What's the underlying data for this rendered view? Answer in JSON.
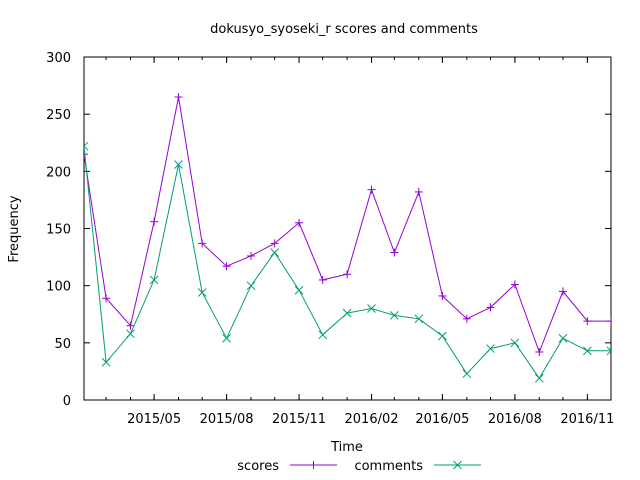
{
  "chart_data": {
    "type": "line",
    "title": "dokusyo_syoseki_r scores and comments",
    "xlabel": "Time",
    "ylabel": "Frequency",
    "xlim": [
      "2015-02-01",
      "2016-12-01"
    ],
    "ylim": [
      0,
      300
    ],
    "grid": false,
    "legend_position": "bottom",
    "x_tick_labels": [
      "2015/05",
      "2015/08",
      "2015/11",
      "2016/02",
      "2016/05",
      "2016/08",
      "2016/11"
    ],
    "y_tick_labels": [
      "0",
      "50",
      "100",
      "150",
      "200",
      "250",
      "300"
    ],
    "x": [
      "2015-02-01",
      "2015-03-01",
      "2015-04-01",
      "2015-05-01",
      "2015-06-01",
      "2015-07-01",
      "2015-08-01",
      "2015-09-01",
      "2015-10-01",
      "2015-11-01",
      "2015-12-01",
      "2016-01-01",
      "2016-02-01",
      "2016-03-01",
      "2016-04-01",
      "2016-05-01",
      "2016-06-01",
      "2016-07-01",
      "2016-08-01",
      "2016-09-01",
      "2016-10-01",
      "2016-11-01",
      "2016-12-01"
    ],
    "series": [
      {
        "name": "scores",
        "color": "#9400d3",
        "marker": "plus",
        "values": [
          215,
          89,
          65,
          156,
          265,
          137,
          117,
          126,
          137,
          155,
          105,
          110,
          184,
          129,
          182,
          91,
          71,
          81,
          101,
          42,
          95,
          69,
          69
        ]
      },
      {
        "name": "comments",
        "color": "#009e73",
        "marker": "cross",
        "values": [
          222,
          33,
          58,
          105,
          206,
          94,
          54,
          100,
          129,
          96,
          57,
          76,
          80,
          74,
          71,
          56,
          23,
          45,
          50,
          19,
          54,
          43,
          43
        ]
      }
    ]
  }
}
